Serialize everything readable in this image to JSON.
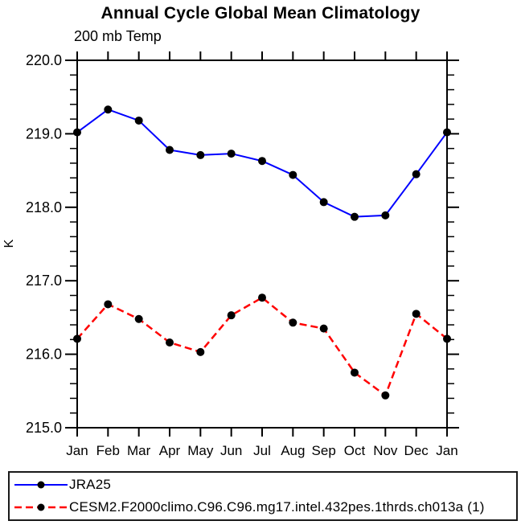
{
  "chart_data": {
    "type": "line",
    "title": "Annual Cycle Global Mean Climatology",
    "subtitle": "200 mb Temp",
    "xlabel": "",
    "ylabel": "K",
    "categories": [
      "Jan",
      "Feb",
      "Mar",
      "Apr",
      "May",
      "Jun",
      "Jul",
      "Aug",
      "Sep",
      "Oct",
      "Nov",
      "Dec",
      "Jan"
    ],
    "series": [
      {
        "name": "JRA25",
        "color": "#0000ff",
        "line_style": "solid",
        "line_width": 2,
        "marker": "filled-circle",
        "marker_color": "#000000",
        "values": [
          219.02,
          219.33,
          219.18,
          218.78,
          218.71,
          218.73,
          218.63,
          218.44,
          218.07,
          217.87,
          217.89,
          218.45,
          219.02
        ]
      },
      {
        "name": "CESM2.F2000climo.C96.C96.mg17.intel.432pes.1thrds.ch013a (1)",
        "color": "#ff0000",
        "line_style": "dashed",
        "line_width": 2.5,
        "dash_pattern": "9 5",
        "marker": "filled-circle",
        "marker_color": "#000000",
        "values": [
          216.21,
          216.68,
          216.48,
          216.16,
          216.03,
          216.53,
          216.77,
          216.43,
          216.35,
          215.75,
          215.44,
          216.55,
          216.21
        ]
      }
    ],
    "ylim": [
      215.0,
      220.0
    ],
    "yticks": [
      215,
      216,
      217,
      218,
      219,
      220
    ],
    "ytick_labels": [
      "215.0",
      "216.0",
      "217.0",
      "218.0",
      "219.0",
      "220.0"
    ],
    "ytick_minor_interval": 0.2,
    "grid": false,
    "legend_position": "bottom-outside-box",
    "frame_color": "#000000",
    "background": "#ffffff"
  }
}
